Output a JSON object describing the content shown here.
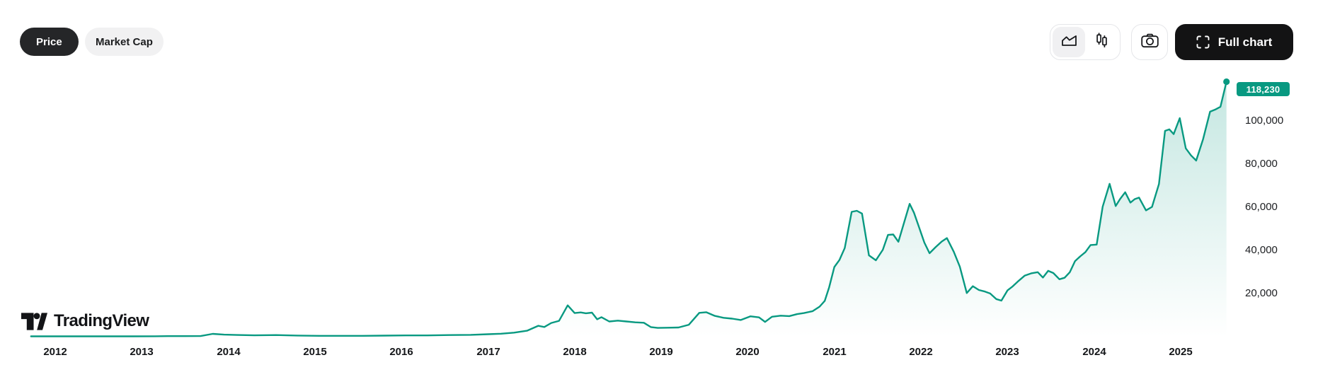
{
  "toolbar": {
    "metric_tabs": [
      {
        "label": "Price",
        "selected": true
      },
      {
        "label": "Market Cap",
        "selected": false
      }
    ],
    "chart_type_toggle": [
      {
        "icon": "area-chart-icon",
        "selected": true
      },
      {
        "icon": "candlestick-icon",
        "selected": false
      }
    ],
    "snapshot_button": {
      "icon": "camera-icon"
    },
    "full_chart_button": {
      "label": "Full chart",
      "icon": "fullscreen-icon"
    }
  },
  "branding": {
    "logo_icon": "tradingview-logo-icon",
    "logo_text": "TradingView"
  },
  "colors": {
    "accent_green": "#089981",
    "fill_top": "rgba(8,153,129,0.24)",
    "fill_bottom": "rgba(8,153,129,0)",
    "badge_bg": "#089981",
    "badge_text": "#ffffff",
    "pill_dark_bg": "#252628",
    "pill_light_bg": "#f1f1f2",
    "dark_button_bg": "#131314",
    "border_light": "#e5e6e9",
    "text_dark": "#141619"
  },
  "chart_data": {
    "type": "area",
    "grid": false,
    "legend": false,
    "x_axis_labels": [
      "2012",
      "2013",
      "2014",
      "2015",
      "2016",
      "2017",
      "2018",
      "2019",
      "2020",
      "2021",
      "2022",
      "2023",
      "2024",
      "2025"
    ],
    "y_axis_tick_labels": [
      "100,000",
      "80,000",
      "60,000",
      "40,000",
      "20,000"
    ],
    "y_axis_tick_values": [
      100000,
      80000,
      60000,
      40000,
      20000
    ],
    "xlim": [
      2011.7,
      2025.6
    ],
    "ylim": [
      0,
      123000
    ],
    "last_value": 118230,
    "last_value_label": "118,230",
    "series": [
      {
        "name": "price",
        "points": [
          [
            2011.72,
            5
          ],
          [
            2012.0,
            6
          ],
          [
            2012.3,
            5
          ],
          [
            2012.6,
            9
          ],
          [
            2012.9,
            13
          ],
          [
            2013.15,
            30
          ],
          [
            2013.3,
            90
          ],
          [
            2013.5,
            100
          ],
          [
            2013.68,
            130
          ],
          [
            2013.82,
            1150
          ],
          [
            2013.95,
            780
          ],
          [
            2014.1,
            640
          ],
          [
            2014.3,
            470
          ],
          [
            2014.55,
            590
          ],
          [
            2014.8,
            370
          ],
          [
            2015.05,
            230
          ],
          [
            2015.3,
            245
          ],
          [
            2015.55,
            235
          ],
          [
            2015.8,
            320
          ],
          [
            2016.05,
            430
          ],
          [
            2016.3,
            425
          ],
          [
            2016.55,
            580
          ],
          [
            2016.8,
            700
          ],
          [
            2017.0,
            980
          ],
          [
            2017.15,
            1200
          ],
          [
            2017.3,
            1700
          ],
          [
            2017.45,
            2600
          ],
          [
            2017.58,
            4900
          ],
          [
            2017.65,
            4350
          ],
          [
            2017.73,
            6200
          ],
          [
            2017.82,
            7200
          ],
          [
            2017.92,
            14400
          ],
          [
            2018.0,
            10800
          ],
          [
            2018.07,
            11100
          ],
          [
            2018.13,
            10700
          ],
          [
            2018.2,
            11000
          ],
          [
            2018.26,
            7900
          ],
          [
            2018.31,
            8900
          ],
          [
            2018.4,
            6900
          ],
          [
            2018.5,
            7300
          ],
          [
            2018.6,
            6900
          ],
          [
            2018.7,
            6500
          ],
          [
            2018.8,
            6300
          ],
          [
            2018.88,
            4300
          ],
          [
            2018.96,
            3900
          ],
          [
            2019.08,
            4000
          ],
          [
            2019.2,
            4100
          ],
          [
            2019.32,
            5400
          ],
          [
            2019.44,
            10900
          ],
          [
            2019.52,
            11200
          ],
          [
            2019.62,
            9500
          ],
          [
            2019.72,
            8600
          ],
          [
            2019.82,
            8200
          ],
          [
            2019.92,
            7600
          ],
          [
            2020.03,
            9300
          ],
          [
            2020.13,
            8800
          ],
          [
            2020.2,
            6700
          ],
          [
            2020.28,
            9100
          ],
          [
            2020.38,
            9600
          ],
          [
            2020.48,
            9400
          ],
          [
            2020.57,
            10300
          ],
          [
            2020.65,
            10800
          ],
          [
            2020.75,
            11700
          ],
          [
            2020.83,
            13800
          ],
          [
            2020.89,
            16500
          ],
          [
            2020.94,
            22800
          ],
          [
            2021.0,
            32200
          ],
          [
            2021.06,
            35500
          ],
          [
            2021.12,
            41000
          ],
          [
            2021.2,
            57800
          ],
          [
            2021.26,
            58300
          ],
          [
            2021.32,
            57000
          ],
          [
            2021.4,
            37600
          ],
          [
            2021.48,
            35300
          ],
          [
            2021.56,
            40200
          ],
          [
            2021.62,
            47100
          ],
          [
            2021.68,
            47300
          ],
          [
            2021.74,
            43900
          ],
          [
            2021.87,
            61500
          ],
          [
            2021.92,
            57400
          ],
          [
            2021.97,
            51700
          ],
          [
            2022.04,
            43500
          ],
          [
            2022.1,
            38600
          ],
          [
            2022.17,
            41400
          ],
          [
            2022.24,
            44000
          ],
          [
            2022.3,
            45600
          ],
          [
            2022.38,
            39200
          ],
          [
            2022.45,
            32300
          ],
          [
            2022.53,
            20100
          ],
          [
            2022.6,
            23300
          ],
          [
            2022.67,
            21500
          ],
          [
            2022.74,
            20800
          ],
          [
            2022.8,
            19900
          ],
          [
            2022.87,
            17300
          ],
          [
            2022.93,
            16600
          ],
          [
            2023.0,
            21300
          ],
          [
            2023.06,
            23200
          ],
          [
            2023.13,
            25800
          ],
          [
            2023.2,
            28200
          ],
          [
            2023.28,
            29300
          ],
          [
            2023.35,
            29800
          ],
          [
            2023.41,
            27300
          ],
          [
            2023.47,
            30400
          ],
          [
            2023.53,
            29400
          ],
          [
            2023.6,
            26500
          ],
          [
            2023.66,
            27200
          ],
          [
            2023.72,
            29800
          ],
          [
            2023.78,
            34900
          ],
          [
            2023.84,
            37100
          ],
          [
            2023.9,
            39100
          ],
          [
            2023.96,
            42400
          ],
          [
            2024.03,
            42600
          ],
          [
            2024.1,
            60200
          ],
          [
            2024.18,
            70800
          ],
          [
            2024.25,
            60500
          ],
          [
            2024.3,
            63700
          ],
          [
            2024.36,
            66900
          ],
          [
            2024.42,
            62100
          ],
          [
            2024.47,
            63700
          ],
          [
            2024.52,
            64400
          ],
          [
            2024.6,
            58500
          ],
          [
            2024.67,
            60100
          ],
          [
            2024.75,
            70700
          ],
          [
            2024.82,
            95400
          ],
          [
            2024.87,
            96100
          ],
          [
            2024.92,
            93900
          ],
          [
            2024.99,
            101300
          ],
          [
            2025.06,
            87300
          ],
          [
            2025.12,
            84000
          ],
          [
            2025.18,
            81600
          ],
          [
            2025.26,
            91600
          ],
          [
            2025.34,
            104300
          ],
          [
            2025.4,
            105300
          ],
          [
            2025.46,
            106600
          ],
          [
            2025.53,
            118230
          ]
        ]
      }
    ]
  }
}
